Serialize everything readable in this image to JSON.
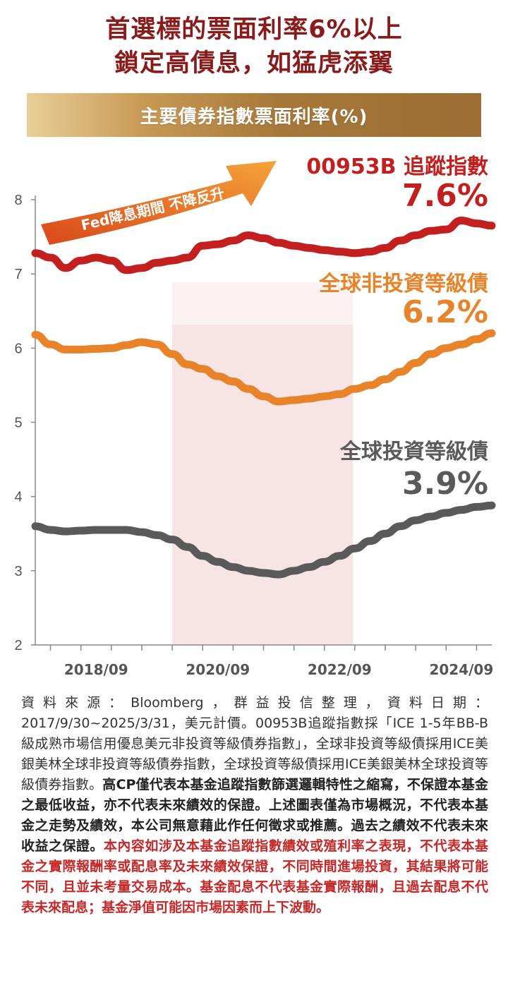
{
  "headline": {
    "line1": "首選標的票面利率6%以上",
    "line2": "鎖定高債息，如猛虎添翼"
  },
  "banner": "主要債券指數票面利率(%)",
  "chart_data": {
    "type": "line",
    "title": "主要債券指數票面利率(%)",
    "xlabel": "",
    "ylabel": "",
    "ylim": [
      2,
      8
    ],
    "yticks": [
      "2",
      "3",
      "4",
      "5",
      "6",
      "7",
      "8"
    ],
    "xtick_labels": [
      "2018/09",
      "2020/09",
      "2022/09",
      "2024/09"
    ],
    "shaded_period": {
      "start": 2020.0,
      "end": 2022.97
    },
    "arrow_label": "Fed降息期間 不降反升",
    "x": [
      2017.75,
      2018.0,
      2018.25,
      2018.5,
      2018.75,
      2019.0,
      2019.25,
      2019.5,
      2019.75,
      2020.0,
      2020.25,
      2020.5,
      2020.75,
      2021.0,
      2021.25,
      2021.5,
      2021.75,
      2022.0,
      2022.25,
      2022.5,
      2022.75,
      2023.0,
      2023.25,
      2023.5,
      2023.75,
      2024.0,
      2024.25,
      2024.5,
      2024.75,
      2025.0,
      2025.25
    ],
    "series": [
      {
        "name": "00953B 追蹤指數",
        "end_label": "7.6%",
        "color": "#c41f1f",
        "values": [
          7.28,
          7.22,
          7.08,
          7.18,
          7.22,
          7.18,
          7.05,
          7.08,
          7.15,
          7.18,
          7.22,
          7.38,
          7.4,
          7.45,
          7.52,
          7.48,
          7.42,
          7.38,
          7.35,
          7.32,
          7.3,
          7.28,
          7.3,
          7.35,
          7.45,
          7.52,
          7.58,
          7.6,
          7.72,
          7.68,
          7.65
        ]
      },
      {
        "name": "全球非投資等級債",
        "end_label": "6.2%",
        "color": "#e8832a",
        "values": [
          6.18,
          6.05,
          5.98,
          5.98,
          5.99,
          6.0,
          6.04,
          6.08,
          6.05,
          5.92,
          5.78,
          5.72,
          5.62,
          5.55,
          5.45,
          5.35,
          5.28,
          5.3,
          5.32,
          5.35,
          5.38,
          5.45,
          5.5,
          5.58,
          5.68,
          5.8,
          5.92,
          6.0,
          6.05,
          6.12,
          6.2
        ]
      },
      {
        "name": "全球投資等級債",
        "end_label": "3.9%",
        "color": "#5a5a5a",
        "values": [
          3.6,
          3.55,
          3.53,
          3.54,
          3.55,
          3.55,
          3.55,
          3.52,
          3.48,
          3.42,
          3.32,
          3.2,
          3.12,
          3.05,
          3.0,
          2.97,
          2.95,
          3.0,
          3.05,
          3.12,
          3.2,
          3.3,
          3.4,
          3.5,
          3.6,
          3.68,
          3.73,
          3.78,
          3.82,
          3.86,
          3.88
        ]
      }
    ]
  },
  "source": {
    "normal": "資料來源：Bloomberg，群益投信整理，資料日期：2017/9/30~2025/3/31，美元計價。00953B追蹤指數採「ICE 1-5年BB-B級成熟市場信用優息美元非投資等級債券指數」，全球非投資等級債採用ICE美銀美林全球非投資等級債券指數，全球投資等級債採用ICE美銀美林全球投資等級債券指數。",
    "bold": "高CP僅代表本基金追蹤指數篩選邏輯特性之縮寫，不保證本基金之最低收益，亦不代表未來績效的保證。上述圖表僅為市場概況，不代表本基金之走勢及績效，本公司無意藉此作任何徵求或推薦。過去之績效不代表未來收益之保證。",
    "red": "本內容如涉及本基金追蹤指數績效或殖利率之表現，不代表本基金之實際報酬率或配息率及未來績效保證，不同時間進場投資，其結果將可能不同，且並未考量交易成本。基金配息不代表基金實際報酬，且過去配息不代表未來配息；基金淨值可能因市場因素而上下波動。"
  }
}
